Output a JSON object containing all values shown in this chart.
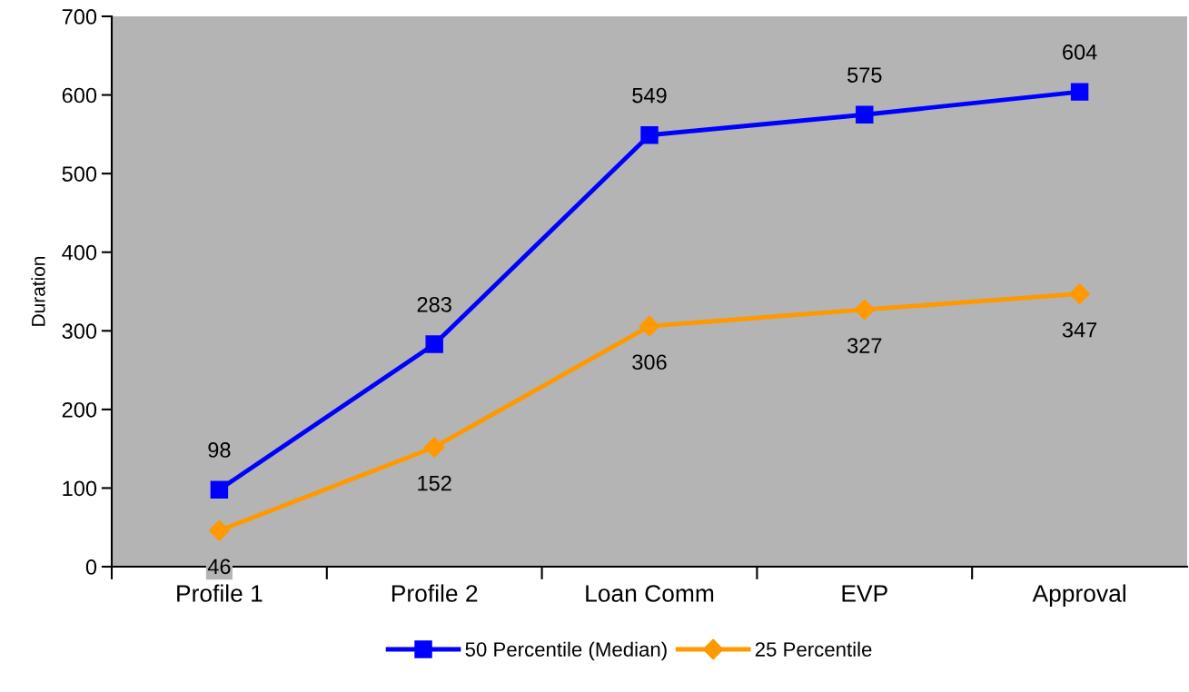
{
  "chart_data": {
    "type": "line",
    "ylabel": "Duration",
    "categories": [
      "Profile 1",
      "Profile 2",
      "Loan Comm",
      "EVP",
      "Approval"
    ],
    "series": [
      {
        "name": "50 Percentile (Median)",
        "color": "#0000ff",
        "marker": "square",
        "values": [
          98,
          283,
          549,
          575,
          604
        ]
      },
      {
        "name": "25 Percentile",
        "color": "#ff9900",
        "marker": "diamond",
        "values": [
          46,
          152,
          306,
          327,
          347
        ]
      }
    ],
    "ylim": [
      0,
      700
    ],
    "yticks": [
      0,
      100,
      200,
      300,
      400,
      500,
      600,
      700
    ],
    "data_labels": true,
    "legend": "bottom",
    "line_style": "solid"
  }
}
